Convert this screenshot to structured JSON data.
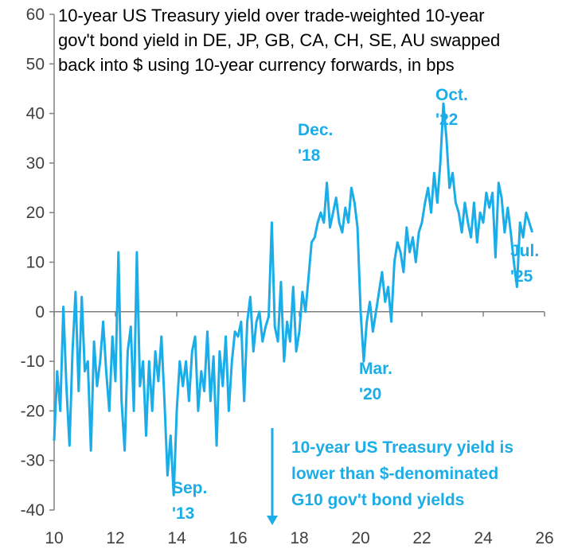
{
  "chart_data": {
    "type": "line",
    "title_lines": [
      "10-year US Treasury yield over trade-weighted 10-year",
      "gov't bond yield in DE, JP, GB, CA, CH, SE, AU swapped",
      "back into $ using 10-year currency forwards, in bps"
    ],
    "xlabel": "",
    "ylabel": "",
    "xlim": [
      10,
      26
    ],
    "ylim": [
      -40,
      60
    ],
    "x_ticks": [
      "10",
      "12",
      "14",
      "16",
      "18",
      "20",
      "22",
      "24",
      "26"
    ],
    "y_ticks": [
      "60",
      "50",
      "40",
      "30",
      "20",
      "10",
      "0",
      "-10",
      "-20",
      "-30",
      "-40"
    ],
    "line_color": "#1AADE8",
    "annotation_color": "#1AADE8",
    "grid": false,
    "series": [
      {
        "x": [
          10.0,
          10.1,
          10.2,
          10.3,
          10.4,
          10.5,
          10.6,
          10.7,
          10.8,
          10.9,
          11.0,
          11.1,
          11.2,
          11.3,
          11.4,
          11.5,
          11.6,
          11.7,
          11.8,
          11.9,
          12.0,
          12.1,
          12.2,
          12.3,
          12.4,
          12.5,
          12.6,
          12.7,
          12.8,
          12.9,
          13.0,
          13.1,
          13.2,
          13.3,
          13.4,
          13.5,
          13.6,
          13.7,
          13.8,
          13.9,
          14.0,
          14.1,
          14.2,
          14.3,
          14.4,
          14.5,
          14.6,
          14.7,
          14.8,
          14.9,
          15.0,
          15.1,
          15.2,
          15.3,
          15.4,
          15.5,
          15.6,
          15.7,
          15.8,
          15.9,
          16.0,
          16.1,
          16.2,
          16.3,
          16.4,
          16.5,
          16.6,
          16.7,
          16.8,
          16.9,
          17.0,
          17.1,
          17.2,
          17.3,
          17.4,
          17.5,
          17.6,
          17.7,
          17.8,
          17.9,
          18.0,
          18.1,
          18.2,
          18.3,
          18.4,
          18.5,
          18.6,
          18.7,
          18.8,
          18.9,
          19.0,
          19.1,
          19.2,
          19.3,
          19.4,
          19.5,
          19.6,
          19.7,
          19.8,
          19.9,
          20.0,
          20.1,
          20.2,
          20.3,
          20.4,
          20.5,
          20.6,
          20.7,
          20.8,
          20.9,
          21.0,
          21.1,
          21.2,
          21.3,
          21.4,
          21.5,
          21.6,
          21.7,
          21.8,
          21.9,
          22.0,
          22.1,
          22.2,
          22.3,
          22.4,
          22.5,
          22.6,
          22.7,
          22.8,
          22.9,
          23.0,
          23.1,
          23.2,
          23.3,
          23.4,
          23.5,
          23.6,
          23.7,
          23.8,
          23.9,
          24.0,
          24.1,
          24.2,
          24.3,
          24.4,
          24.5,
          24.6,
          24.7,
          24.8,
          24.9,
          25.0,
          25.1,
          25.2,
          25.3,
          25.4,
          25.5,
          25.6
        ],
        "y": [
          -26,
          -12,
          -20,
          1,
          -15,
          -27,
          -8,
          4,
          -16,
          3,
          -12,
          -10,
          -28,
          -6,
          -15,
          -10,
          -2,
          -12,
          -20,
          -5,
          -14,
          12,
          -18,
          -28,
          -8,
          -3,
          -20,
          12,
          -15,
          -10,
          -25,
          -10,
          -20,
          -8,
          -14,
          -5,
          -18,
          -33,
          -25,
          -37,
          -20,
          -10,
          -15,
          -10,
          -18,
          -8,
          -5,
          -20,
          -12,
          -16,
          -4,
          -18,
          -9,
          -27,
          -8,
          -15,
          -5,
          -20,
          -10,
          -4,
          -5,
          -2,
          -18,
          -2,
          3,
          -8,
          -2,
          0,
          -6,
          -3,
          -1,
          18,
          -3,
          -6,
          6,
          -10,
          -2,
          -6,
          5,
          -8,
          -4,
          4,
          0,
          7,
          14,
          15,
          18,
          20,
          18,
          26,
          17,
          20,
          23,
          18,
          16,
          21,
          18,
          25,
          22,
          17,
          0,
          -10,
          -2,
          2,
          -4,
          0,
          4,
          8,
          2,
          5,
          -2,
          10,
          14,
          12,
          8,
          17,
          12,
          15,
          10,
          16,
          18,
          22,
          25,
          20,
          28,
          22,
          30,
          42,
          35,
          25,
          28,
          22,
          20,
          16,
          22,
          18,
          15,
          22,
          14,
          20,
          18,
          24,
          21,
          24,
          11,
          26,
          23,
          16,
          21,
          16,
          10,
          5,
          18,
          15,
          20,
          18,
          16
        ]
      }
    ],
    "annotations": {
      "oct22": [
        "Oct.",
        "'22"
      ],
      "dec18": [
        "Dec.",
        "'18"
      ],
      "jul25": [
        "Jul.",
        "'25"
      ],
      "mar20": [
        "Mar.",
        "'20"
      ],
      "sep13": [
        "Sep.",
        "'13"
      ],
      "note": [
        "10-year US Treasury yield is",
        "lower than $-denominated",
        "G10 gov't bond yields"
      ]
    }
  }
}
